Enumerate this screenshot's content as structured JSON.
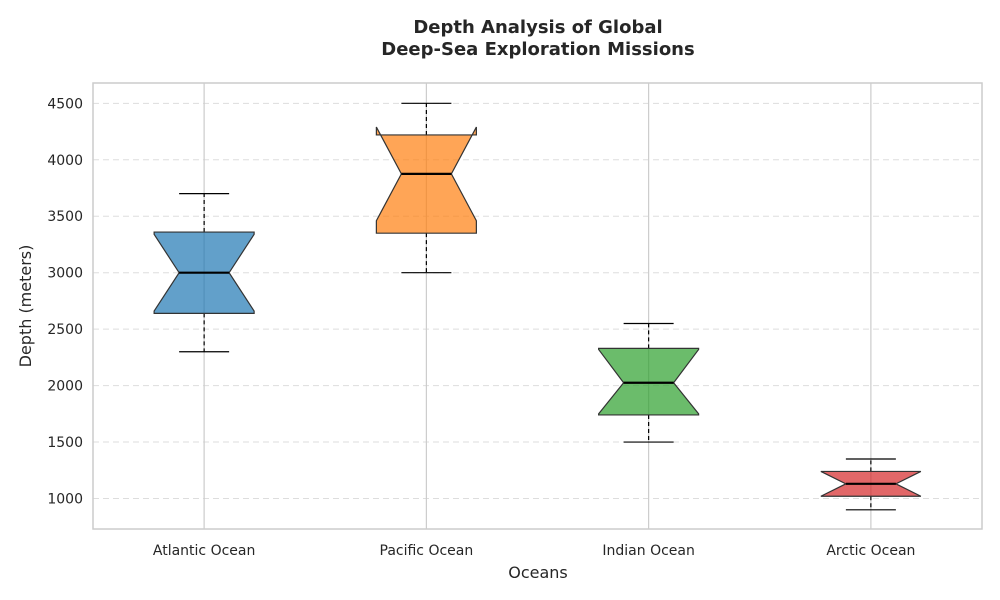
{
  "chart_data": {
    "type": "box",
    "title": [
      "Depth Analysis of Global",
      "Deep-Sea Exploration Missions"
    ],
    "xlabel": "Oceans",
    "ylabel": "Depth (meters)",
    "ylim": [
      730,
      4680
    ],
    "yticks": [
      1000,
      1500,
      2000,
      2500,
      3000,
      3500,
      4000,
      4500
    ],
    "grid": {
      "y": true,
      "x": true
    },
    "notched": true,
    "boxes": [
      {
        "name": "Atlantic Ocean",
        "whisker_low": 2300,
        "q1": 2640,
        "median": 3000,
        "q3": 3360,
        "whisker_high": 3700,
        "notch_low": 2660,
        "notch_high": 3340,
        "color": "#1f77b4"
      },
      {
        "name": "Pacific Ocean",
        "whisker_low": 3000,
        "q1": 3350,
        "median": 3875,
        "q3": 4220,
        "whisker_high": 4500,
        "notch_low": 3460,
        "notch_high": 4290,
        "color": "#ff7f0e"
      },
      {
        "name": "Indian Ocean",
        "whisker_low": 1500,
        "q1": 1740,
        "median": 2025,
        "q3": 2330,
        "whisker_high": 2550,
        "notch_low": 1750,
        "notch_high": 2320,
        "color": "#2ca02c"
      },
      {
        "name": "Arctic Ocean",
        "whisker_low": 900,
        "q1": 1020,
        "median": 1130,
        "q3": 1240,
        "whisker_high": 1350,
        "notch_low": 1020,
        "notch_high": 1240,
        "color": "#d62728"
      }
    ]
  }
}
